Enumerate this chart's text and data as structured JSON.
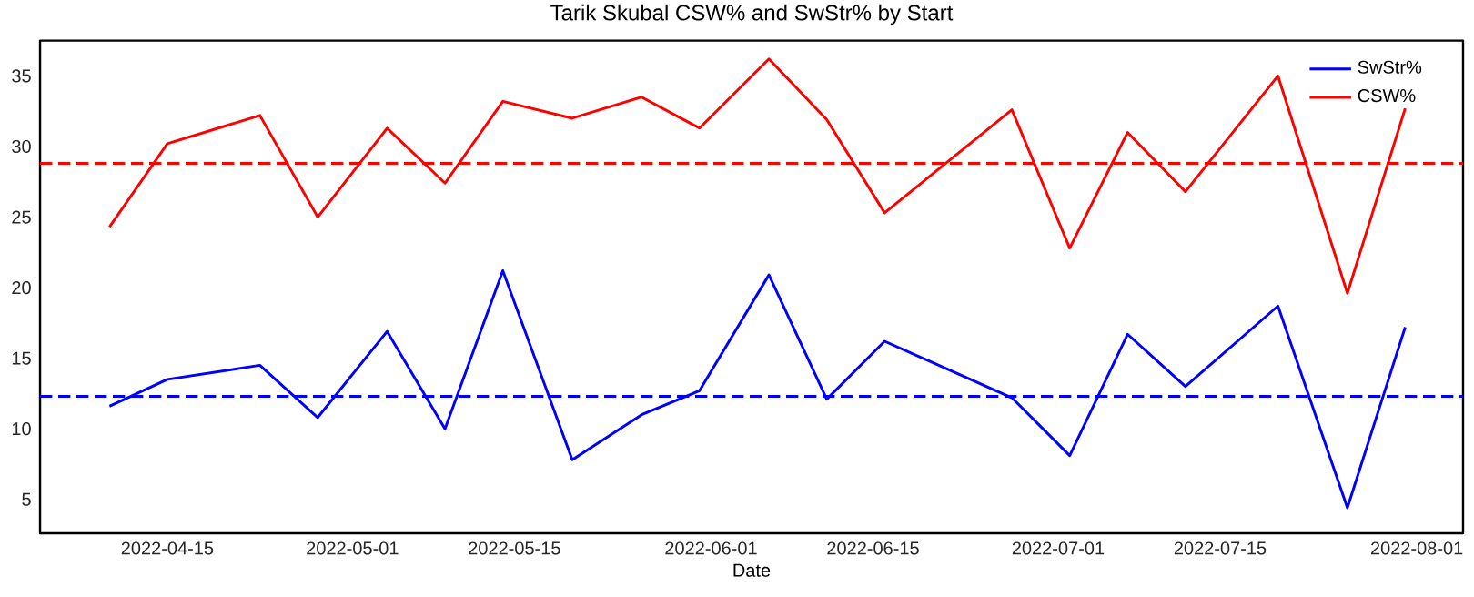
{
  "chart_data": {
    "type": "line",
    "title": "Tarik Skubal CSW% and SwStr% by Start",
    "xlabel": "Date",
    "x": [
      "2022-04-10",
      "2022-04-15",
      "2022-04-23",
      "2022-04-28",
      "2022-05-04",
      "2022-05-09",
      "2022-05-14",
      "2022-05-20",
      "2022-05-26",
      "2022-05-31",
      "2022-06-06",
      "2022-06-11",
      "2022-06-16",
      "2022-06-27",
      "2022-07-02",
      "2022-07-07",
      "2022-07-12",
      "2022-07-20",
      "2022-07-26",
      "2022-07-31"
    ],
    "series": [
      {
        "name": "SwStr%",
        "color": "#0000ff",
        "values": [
          11.6,
          13.5,
          14.5,
          10.8,
          16.9,
          10.0,
          21.2,
          7.8,
          11.0,
          12.7,
          20.9,
          12.1,
          16.2,
          12.2,
          8.1,
          16.7,
          13.0,
          18.7,
          4.4,
          17.2
        ]
      },
      {
        "name": "CSW%",
        "color": "#ff0000",
        "values": [
          24.3,
          30.2,
          32.2,
          25.0,
          31.3,
          27.4,
          33.2,
          32.0,
          33.5,
          31.3,
          36.2,
          31.9,
          25.3,
          32.6,
          22.8,
          31.0,
          26.8,
          35.0,
          19.6,
          32.7
        ]
      }
    ],
    "ref_lines": [
      {
        "axis": "y",
        "value": 12.3,
        "color": "#0000ff",
        "line_style": "dashed"
      },
      {
        "axis": "y",
        "value": 28.8,
        "color": "#ff0000",
        "line_style": "dashed"
      }
    ],
    "xlim": [
      "2022-04-04",
      "2022-08-05"
    ],
    "ylim": [
      2.6,
      37.5
    ],
    "xticks": [
      "2022-04-15",
      "2022-05-01",
      "2022-05-15",
      "2022-06-01",
      "2022-06-15",
      "2022-07-01",
      "2022-07-15",
      "2022-08-01"
    ],
    "yticks": [
      5,
      10,
      15,
      20,
      25,
      30,
      35
    ],
    "grid": false,
    "legend": "top right",
    "marker": "none",
    "line_style": "solid"
  }
}
